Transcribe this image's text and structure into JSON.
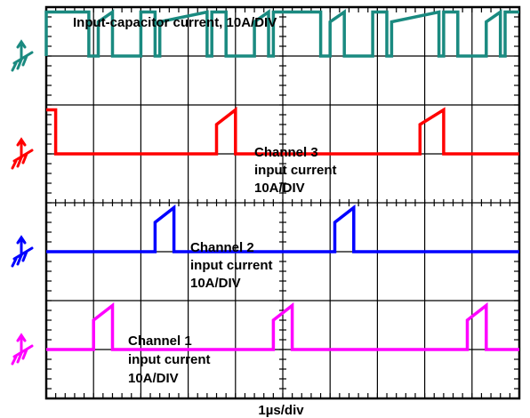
{
  "chart_data": {
    "type": "line",
    "x_unit": "µs",
    "xlim": [
      0,
      10
    ],
    "divisions": {
      "x": 10,
      "y": 8
    },
    "grid": true,
    "xlabel": "1µs/div",
    "ylabel": "",
    "series": [
      {
        "name": "Input-capacitor current, 10A/DIV",
        "color": "#1a8a80",
        "baseline_div": 7.0,
        "x": [
          0,
          0.0,
          0.9,
          0.9,
          1.1,
          1.1,
          1.4,
          1.4,
          2.0,
          2.0,
          2.3,
          2.3,
          2.4,
          2.4,
          3.4,
          3.4,
          3.5,
          3.5,
          3.8,
          3.8,
          4.4,
          4.4,
          4.7,
          4.7,
          4.8,
          4.8,
          5.8,
          5.8,
          6.0,
          6.0,
          6.3,
          6.3,
          6.9,
          6.9,
          7.2,
          7.2,
          7.3,
          7.3,
          8.3,
          8.3,
          8.4,
          8.4,
          8.7,
          8.7,
          9.3,
          9.3,
          9.6,
          9.6,
          9.7,
          9.7,
          10
        ],
        "y_div": [
          7.0,
          7.9,
          7.9,
          7.0,
          7.0,
          7.7,
          7.9,
          7.0,
          7.0,
          7.9,
          7.9,
          7.0,
          7.0,
          7.7,
          7.9,
          7.0,
          7.0,
          7.9,
          7.9,
          7.0,
          7.0,
          7.7,
          7.9,
          7.0,
          7.0,
          7.9,
          7.9,
          7.0,
          7.0,
          7.7,
          7.9,
          7.0,
          7.0,
          7.9,
          7.9,
          7.0,
          7.0,
          7.7,
          7.9,
          7.0,
          7.0,
          7.9,
          7.9,
          7.0,
          7.0,
          7.7,
          7.9,
          7.0,
          7.0,
          7.9,
          7.9
        ]
      },
      {
        "name": "Channel 3 input current 10A/DIV",
        "label_lines": [
          "Channel 3",
          "input current",
          "10A/DIV"
        ],
        "color": "#ff0000",
        "baseline_div": 5.0,
        "x": [
          0,
          0.15,
          0.2,
          0.2,
          3.6,
          3.6,
          4.0,
          4.0,
          7.9,
          7.9,
          8.4,
          8.4,
          10
        ],
        "y_div": [
          5.9,
          5.9,
          5.9,
          5.0,
          5.0,
          5.6,
          5.9,
          5.0,
          5.0,
          5.6,
          5.9,
          5.0,
          5.0
        ]
      },
      {
        "name": "Channel 2 input current 10A/DIV",
        "label_lines": [
          "Channel 2",
          "input current",
          "10A/DIV"
        ],
        "color": "#0000ff",
        "baseline_div": 3.0,
        "x": [
          0,
          2.3,
          2.3,
          2.7,
          2.7,
          6.1,
          6.1,
          6.5,
          6.5,
          10
        ],
        "y_div": [
          3.0,
          3.0,
          3.6,
          3.9,
          3.0,
          3.0,
          3.6,
          3.9,
          3.0,
          3.0
        ]
      },
      {
        "name": "Channel 1 input current 10A/DIV",
        "label_lines": [
          "Channel 1",
          "input current",
          "10A/DIV"
        ],
        "color": "#ff00ff",
        "baseline_div": 1.0,
        "x": [
          0,
          1.0,
          1.0,
          1.4,
          1.4,
          4.8,
          4.8,
          5.2,
          5.2,
          8.9,
          8.9,
          9.3,
          9.3,
          10
        ],
        "y_div": [
          1.0,
          1.0,
          1.6,
          1.9,
          1.0,
          1.0,
          1.6,
          1.9,
          1.0,
          1.0,
          1.6,
          1.9,
          1.0,
          1.0
        ]
      }
    ]
  }
}
